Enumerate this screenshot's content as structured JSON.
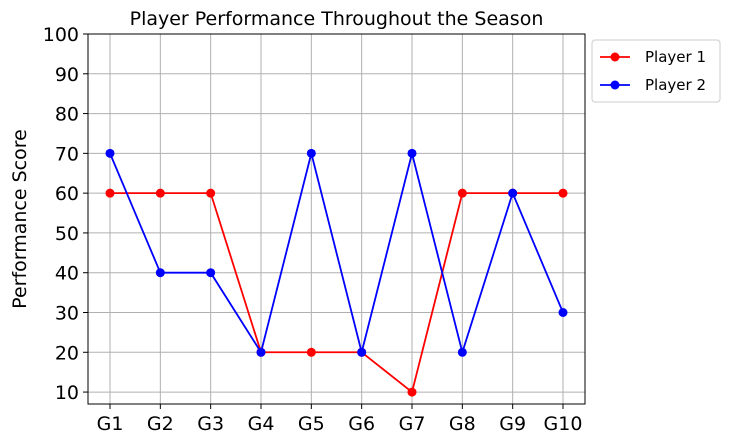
{
  "chart_data": {
    "type": "line",
    "title": "Player Performance Throughout the Season",
    "xlabel": "",
    "ylabel": "Performance Score",
    "categories": [
      "G1",
      "G2",
      "G3",
      "G4",
      "G5",
      "G6",
      "G7",
      "G8",
      "G9",
      "G10"
    ],
    "series": [
      {
        "name": "Player 1",
        "color": "#ff0000",
        "values": [
          60,
          60,
          60,
          20,
          20,
          20,
          10,
          60,
          60,
          60
        ]
      },
      {
        "name": "Player 2",
        "color": "#0000ff",
        "values": [
          70,
          40,
          40,
          20,
          70,
          20,
          70,
          20,
          60,
          30
        ]
      }
    ],
    "yticks": [
      10,
      20,
      30,
      40,
      50,
      60,
      70,
      80,
      90,
      100
    ],
    "ylim": [
      7,
      100
    ],
    "grid": true,
    "legend_position": "outside top-right"
  }
}
